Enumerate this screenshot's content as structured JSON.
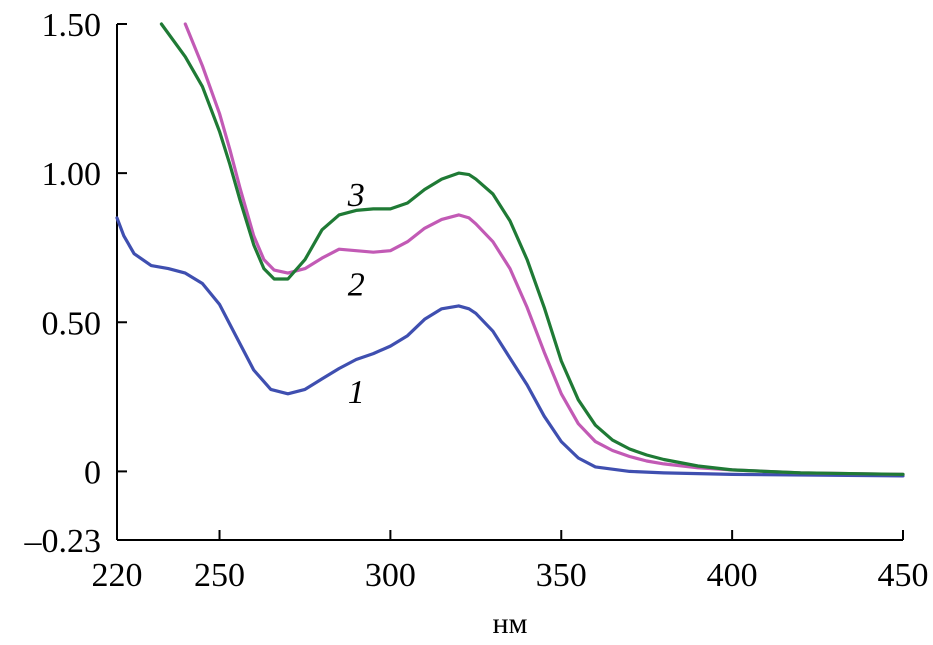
{
  "chart_data": {
    "type": "line",
    "title": "",
    "xlabel": "нм",
    "ylabel": "",
    "xlim": [
      220,
      450
    ],
    "ylim": [
      -0.23,
      1.5
    ],
    "x_ticks": [
      {
        "value": 220,
        "label": "220"
      },
      {
        "value": 250,
        "label": "250"
      },
      {
        "value": 300,
        "label": "300"
      },
      {
        "value": 350,
        "label": "350"
      },
      {
        "value": 400,
        "label": "400"
      },
      {
        "value": 450,
        "label": "450"
      }
    ],
    "y_ticks": [
      {
        "value": 1.5,
        "label": "1.50"
      },
      {
        "value": 1.0,
        "label": "1.00"
      },
      {
        "value": 0.5,
        "label": "0.50"
      },
      {
        "value": 0,
        "label": "0"
      },
      {
        "value": -0.23,
        "label": "–0.23"
      }
    ],
    "grid": false,
    "series": [
      {
        "label": "1",
        "color": "#3f4fb0",
        "label_at": [
          290,
          0.27
        ],
        "points": [
          [
            220,
            0.85
          ],
          [
            222,
            0.79
          ],
          [
            225,
            0.73
          ],
          [
            230,
            0.69
          ],
          [
            235,
            0.68
          ],
          [
            240,
            0.665
          ],
          [
            245,
            0.63
          ],
          [
            250,
            0.56
          ],
          [
            255,
            0.45
          ],
          [
            260,
            0.34
          ],
          [
            265,
            0.275
          ],
          [
            270,
            0.26
          ],
          [
            275,
            0.275
          ],
          [
            280,
            0.31
          ],
          [
            285,
            0.345
          ],
          [
            290,
            0.375
          ],
          [
            295,
            0.395
          ],
          [
            300,
            0.42
          ],
          [
            305,
            0.455
          ],
          [
            310,
            0.51
          ],
          [
            315,
            0.545
          ],
          [
            320,
            0.555
          ],
          [
            323,
            0.545
          ],
          [
            325,
            0.53
          ],
          [
            330,
            0.47
          ],
          [
            335,
            0.38
          ],
          [
            340,
            0.29
          ],
          [
            345,
            0.185
          ],
          [
            350,
            0.1
          ],
          [
            355,
            0.045
          ],
          [
            360,
            0.015
          ],
          [
            370,
            0.0
          ],
          [
            380,
            -0.005
          ],
          [
            400,
            -0.01
          ],
          [
            450,
            -0.015
          ]
        ]
      },
      {
        "label": "2",
        "color": "#c25ab5",
        "label_at": [
          290,
          0.63
        ],
        "points": [
          [
            240,
            1.5
          ],
          [
            245,
            1.36
          ],
          [
            250,
            1.2
          ],
          [
            253,
            1.08
          ],
          [
            256,
            0.95
          ],
          [
            260,
            0.79
          ],
          [
            263,
            0.71
          ],
          [
            266,
            0.675
          ],
          [
            270,
            0.665
          ],
          [
            275,
            0.68
          ],
          [
            280,
            0.715
          ],
          [
            285,
            0.745
          ],
          [
            290,
            0.74
          ],
          [
            295,
            0.735
          ],
          [
            300,
            0.74
          ],
          [
            305,
            0.77
          ],
          [
            310,
            0.815
          ],
          [
            315,
            0.845
          ],
          [
            320,
            0.86
          ],
          [
            323,
            0.85
          ],
          [
            325,
            0.83
          ],
          [
            330,
            0.77
          ],
          [
            335,
            0.68
          ],
          [
            340,
            0.55
          ],
          [
            345,
            0.4
          ],
          [
            350,
            0.26
          ],
          [
            355,
            0.16
          ],
          [
            360,
            0.1
          ],
          [
            365,
            0.07
          ],
          [
            370,
            0.05
          ],
          [
            375,
            0.035
          ],
          [
            380,
            0.025
          ],
          [
            390,
            0.012
          ],
          [
            400,
            0.005
          ],
          [
            420,
            -0.005
          ],
          [
            450,
            -0.01
          ]
        ]
      },
      {
        "label": "3",
        "color": "#1f7a35",
        "label_at": [
          290,
          0.93
        ],
        "points": [
          [
            233,
            1.5
          ],
          [
            240,
            1.39
          ],
          [
            245,
            1.29
          ],
          [
            250,
            1.14
          ],
          [
            253,
            1.03
          ],
          [
            256,
            0.91
          ],
          [
            260,
            0.76
          ],
          [
            263,
            0.68
          ],
          [
            266,
            0.645
          ],
          [
            270,
            0.645
          ],
          [
            275,
            0.71
          ],
          [
            280,
            0.81
          ],
          [
            285,
            0.86
          ],
          [
            290,
            0.875
          ],
          [
            295,
            0.88
          ],
          [
            300,
            0.88
          ],
          [
            305,
            0.9
          ],
          [
            310,
            0.945
          ],
          [
            315,
            0.98
          ],
          [
            320,
            1.0
          ],
          [
            323,
            0.995
          ],
          [
            325,
            0.98
          ],
          [
            330,
            0.93
          ],
          [
            335,
            0.84
          ],
          [
            340,
            0.71
          ],
          [
            345,
            0.55
          ],
          [
            350,
            0.37
          ],
          [
            355,
            0.24
          ],
          [
            360,
            0.155
          ],
          [
            365,
            0.105
          ],
          [
            370,
            0.075
          ],
          [
            375,
            0.055
          ],
          [
            380,
            0.04
          ],
          [
            390,
            0.018
          ],
          [
            400,
            0.005
          ],
          [
            420,
            -0.005
          ],
          [
            450,
            -0.01
          ]
        ]
      }
    ]
  }
}
